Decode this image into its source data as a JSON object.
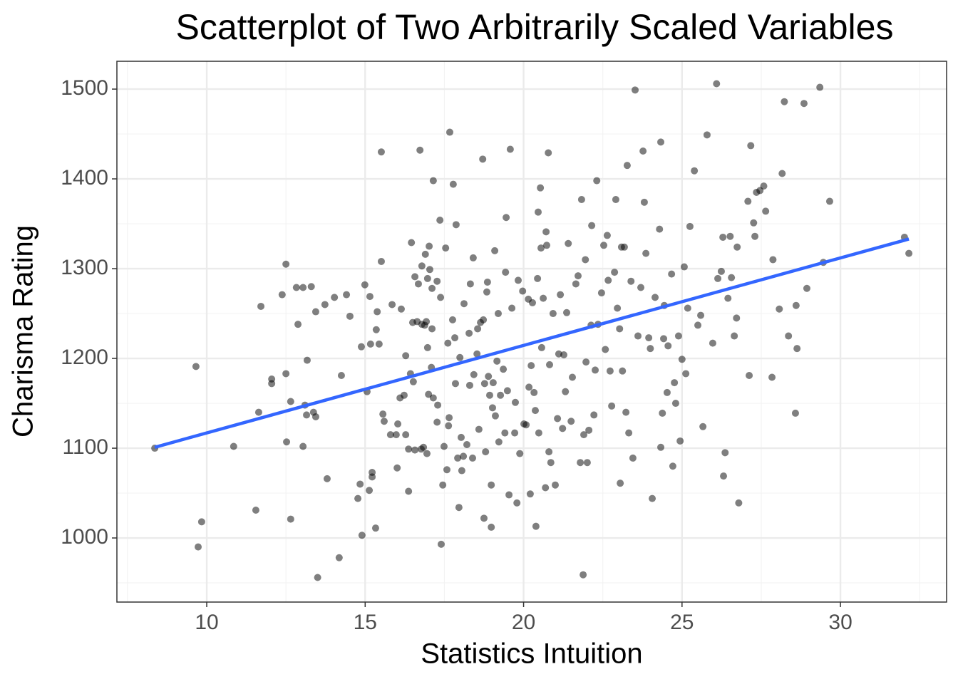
{
  "chart_data": {
    "type": "scatter",
    "title": "Scatterplot of Two Arbitrarily Scaled Variables",
    "x_label": "Statistics Intuition",
    "y_label": "Charisma Rating",
    "xlim": [
      7.165,
      33.35
    ],
    "ylim": [
      928.6,
      1531
    ],
    "xticks": [
      10,
      15,
      20,
      25,
      30
    ],
    "yticks": [
      1000,
      1100,
      1200,
      1300,
      1400,
      1500
    ],
    "x_minor_ticks": [
      7.5,
      12.5,
      17.5,
      22.5,
      27.5,
      32.5
    ],
    "y_minor_ticks": [
      950,
      1050,
      1150,
      1250,
      1350,
      1450
    ],
    "grid": true,
    "series": [
      {
        "color": "#000000",
        "opacity": 0.5,
        "x": [
          8.36,
          9.66,
          9.84,
          9.73,
          10.85,
          11.55,
          11.64,
          11.71,
          12.05,
          12.05,
          12.38,
          12.5,
          12.5,
          12.52,
          12.65,
          12.65,
          12.83,
          12.88,
          13.04,
          13.04,
          13.1,
          13.15,
          13.17,
          13.3,
          13.37,
          13.44,
          13.44,
          13.5,
          13.73,
          13.8,
          14.03,
          14.18,
          14.25,
          14.41,
          14.52,
          14.77,
          14.84,
          14.88,
          14.9,
          14.99,
          15.06,
          15.13,
          15.15,
          15.17,
          15.22,
          15.22,
          15.35,
          15.38,
          15.33,
          15.44,
          15.51,
          15.51,
          15.56,
          15.6,
          15.8,
          15.85,
          15.98,
          16.01,
          16.03,
          16.1,
          16.14,
          16.23,
          16.28,
          16.28,
          16.37,
          16.37,
          16.43,
          16.46,
          16.5,
          16.52,
          16.57,
          16.57,
          16.64,
          16.68,
          16.73,
          16.77,
          16.79,
          16.79,
          16.84,
          16.88,
          16.9,
          16.95,
          16.93,
          16.97,
          16.97,
          17.0,
          17.02,
          17.04,
          17.09,
          17.11,
          17.11,
          17.15,
          17.15,
          17.27,
          17.27,
          17.29,
          17.36,
          17.38,
          17.4,
          17.45,
          17.49,
          17.54,
          17.58,
          17.61,
          17.63,
          17.65,
          17.67,
          17.76,
          17.78,
          17.83,
          17.85,
          17.87,
          17.92,
          17.96,
          17.99,
          18.03,
          18.05,
          18.1,
          18.12,
          18.21,
          18.28,
          18.3,
          18.32,
          18.39,
          18.41,
          18.43,
          18.53,
          18.55,
          18.59,
          18.64,
          18.71,
          18.73,
          18.77,
          18.75,
          18.8,
          18.84,
          18.89,
          18.86,
          18.93,
          18.98,
          18.98,
          19.02,
          19.04,
          19.09,
          19.11,
          19.16,
          19.2,
          19.22,
          19.27,
          19.36,
          19.41,
          19.43,
          19.45,
          19.49,
          19.54,
          19.58,
          19.63,
          19.72,
          19.74,
          19.79,
          19.83,
          19.88,
          19.97,
          20.01,
          20.08,
          20.15,
          20.17,
          20.21,
          20.24,
          20.28,
          20.33,
          20.37,
          20.39,
          20.44,
          20.46,
          20.48,
          20.53,
          20.55,
          20.57,
          20.62,
          20.69,
          20.71,
          20.73,
          20.78,
          20.8,
          20.82,
          20.86,
          20.93,
          21.0,
          21.07,
          21.11,
          21.16,
          21.23,
          21.27,
          21.32,
          21.36,
          21.41,
          21.5,
          21.54,
          21.65,
          21.72,
          21.79,
          21.83,
          21.88,
          21.9,
          21.95,
          21.97,
          22.01,
          22.06,
          22.13,
          22.15,
          22.22,
          22.26,
          22.31,
          22.35,
          22.46,
          22.53,
          22.58,
          22.64,
          22.67,
          22.73,
          22.78,
          22.87,
          22.91,
          22.96,
          23.03,
          23.05,
          23.09,
          23.12,
          23.18,
          23.23,
          23.27,
          23.32,
          23.39,
          23.45,
          23.52,
          23.61,
          23.7,
          23.77,
          23.81,
          23.86,
          23.95,
          24.0,
          24.06,
          24.15,
          24.29,
          24.33,
          24.33,
          24.38,
          24.42,
          24.44,
          24.53,
          24.56,
          24.67,
          24.71,
          24.76,
          24.8,
          24.89,
          24.94,
          25.0,
          25.07,
          25.12,
          25.18,
          25.25,
          25.39,
          25.5,
          25.59,
          25.66,
          25.79,
          25.97,
          26.09,
          26.13,
          26.24,
          26.29,
          26.31,
          26.36,
          26.45,
          26.52,
          26.56,
          26.65,
          26.72,
          26.74,
          26.79,
          27.08,
          27.12,
          27.17,
          27.26,
          27.3,
          27.35,
          27.46,
          27.58,
          27.64,
          27.87,
          27.84,
          28.07,
          28.16,
          28.23,
          28.36,
          28.58,
          28.63,
          28.6,
          28.85,
          28.94,
          29.35,
          29.46,
          29.66,
          32.02,
          32.16
        ],
        "values": [
          1100,
          1191,
          1018,
          990,
          1102,
          1031,
          1140,
          1258,
          1177,
          1172,
          1271,
          1305,
          1183,
          1107,
          1152,
          1021,
          1279,
          1238,
          1279,
          1102,
          1148,
          1137,
          1198,
          1280,
          1140,
          1252,
          1135,
          956,
          1260,
          1066,
          1268,
          978,
          1181,
          1271,
          1247,
          1044,
          1060,
          1213,
          1003,
          1282,
          1163,
          1053,
          1269,
          1216,
          1073,
          1068,
          1232,
          1252,
          1011,
          1216,
          1430,
          1308,
          1138,
          1130,
          1115,
          1260,
          1115,
          1078,
          1127,
          1156,
          1255,
          1159,
          1203,
          1115,
          1052,
          1099,
          1183,
          1329,
          1240,
          1174,
          1098,
          1291,
          1241,
          1283,
          1432,
          1099,
          1238,
          1303,
          1101,
          1237,
          1316,
          1094,
          1241,
          1212,
          1289,
          1160,
          1325,
          1299,
          1190,
          1278,
          1233,
          1398,
          1156,
          1286,
          1129,
          1148,
          1354,
          1268,
          993,
          1059,
          1102,
          1323,
          1076,
          1217,
          1125,
          1134,
          1452,
          1243,
          1394,
          1223,
          1172,
          1349,
          1089,
          1034,
          1201,
          1112,
          1075,
          1091,
          1261,
          1104,
          1228,
          1170,
          1283,
          1089,
          1312,
          1182,
          1205,
          1233,
          1121,
          1240,
          1422,
          1243,
          1172,
          1022,
          1096,
          1274,
          1180,
          1285,
          1159,
          1059,
          1012,
          1145,
          1173,
          1320,
          1136,
          1197,
          1250,
          1107,
          1159,
          1188,
          1117,
          1296,
          1357,
          1164,
          1048,
          1433,
          1256,
          1117,
          1151,
          1039,
          1287,
          1094,
          1275,
          1127,
          1126,
          1266,
          1168,
          1049,
          1192,
          1262,
          1162,
          1142,
          1013,
          1289,
          1363,
          1117,
          1390,
          1323,
          1212,
          1267,
          1056,
          1341,
          1326,
          1429,
          1096,
          1193,
          1084,
          1250,
          1059,
          1133,
          1205,
          1271,
          1122,
          1204,
          1163,
          1251,
          1328,
          1130,
          1179,
          1283,
          1292,
          1084,
          1377,
          959,
          1115,
          1310,
          1196,
          1084,
          1120,
          1237,
          1348,
          1137,
          1187,
          1398,
          1238,
          1273,
          1326,
          1210,
          1337,
          1287,
          1186,
          1147,
          1296,
          1377,
          1256,
          1233,
          1061,
          1324,
          1186,
          1324,
          1140,
          1415,
          1117,
          1286,
          1089,
          1499,
          1225,
          1279,
          1431,
          1374,
          1317,
          1223,
          1211,
          1044,
          1268,
          1344,
          1441,
          1101,
          1139,
          1222,
          1259,
          1162,
          1214,
          1294,
          1080,
          1173,
          1150,
          1225,
          1108,
          1199,
          1302,
          1183,
          1256,
          1347,
          1409,
          1237,
          1248,
          1124,
          1449,
          1217,
          1506,
          1289,
          1297,
          1335,
          1069,
          1095,
          1267,
          1336,
          1290,
          1225,
          1245,
          1324,
          1039,
          1375,
          1181,
          1437,
          1351,
          1336,
          1385,
          1387,
          1392,
          1364,
          1310,
          1179,
          1255,
          1406,
          1486,
          1225,
          1139,
          1211,
          1259,
          1484,
          1278,
          1502,
          1307,
          1375,
          1335,
          1317
        ]
      }
    ],
    "fit_line": {
      "color": "#3366ff",
      "x": [
        8.36,
        32.16
      ],
      "values": [
        1101,
        1333
      ]
    }
  }
}
